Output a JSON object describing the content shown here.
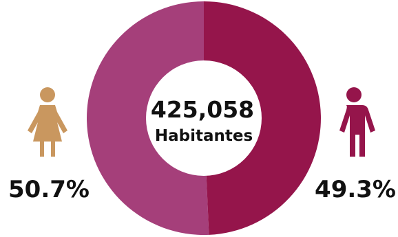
{
  "chart_data": {
    "type": "pie",
    "variant": "donut",
    "total": {
      "value": "425,058",
      "label": "Habitantes"
    },
    "slices": [
      {
        "label": "50.7%",
        "value": 50.7,
        "color": "#a53f7a",
        "icon": "woman-icon",
        "icon_color": "#c9975f"
      },
      {
        "label": "49.3%",
        "value": 49.3,
        "color": "#95154b",
        "icon": "man-icon",
        "icon_color": "#95154b"
      }
    ]
  }
}
